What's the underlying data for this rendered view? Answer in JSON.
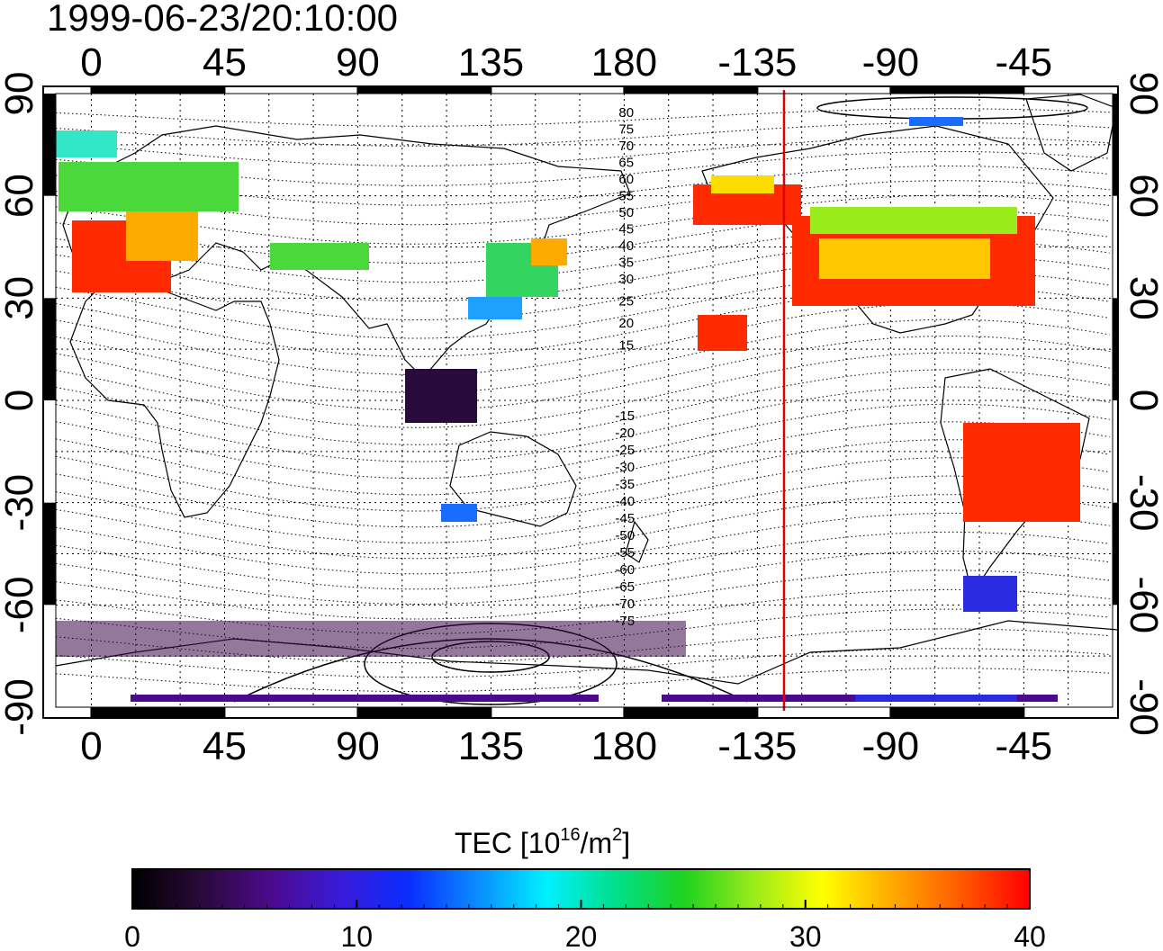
{
  "title": "1999-06-23/20:10:00",
  "colorbar": {
    "label_main": "TEC  [10",
    "label_exp1": "16",
    "label_mid": "/m",
    "label_exp2": "2",
    "label_end": "]",
    "ticks": [
      "0",
      "10",
      "20",
      "30",
      "40"
    ],
    "range": [
      0,
      40
    ],
    "stops": [
      "#000000",
      "#2a0a3a",
      "#4b0a8c",
      "#3a1ad8",
      "#0a2dff",
      "#0a8cff",
      "#00f0ff",
      "#00e08a",
      "#1ed21e",
      "#9aeb1a",
      "#ffff00",
      "#ffaa00",
      "#ff5a00",
      "#ff0000"
    ]
  },
  "map": {
    "x_ticks": [
      "0",
      "45",
      "90",
      "135",
      "180",
      "-135",
      "-90",
      "-45"
    ],
    "y_ticks": [
      "90",
      "60",
      "30",
      "0",
      "-30",
      "-60",
      "-90"
    ],
    "lon_range": [
      -12,
      345
    ],
    "lat_range": [
      -90,
      90
    ],
    "terminator_line_lon": -126,
    "terminator_color": "#e00000",
    "contour_labels_north": [
      "80",
      "75",
      "70",
      "65",
      "60",
      "55",
      "50",
      "45",
      "40",
      "35",
      "30",
      "25",
      "20",
      "15"
    ],
    "contour_labels_south": [
      "-15",
      "-20",
      "-25",
      "-30",
      "-35",
      "-40",
      "-45",
      "-50",
      "-55",
      "-60",
      "-65",
      "-70",
      "-75"
    ]
  }
}
